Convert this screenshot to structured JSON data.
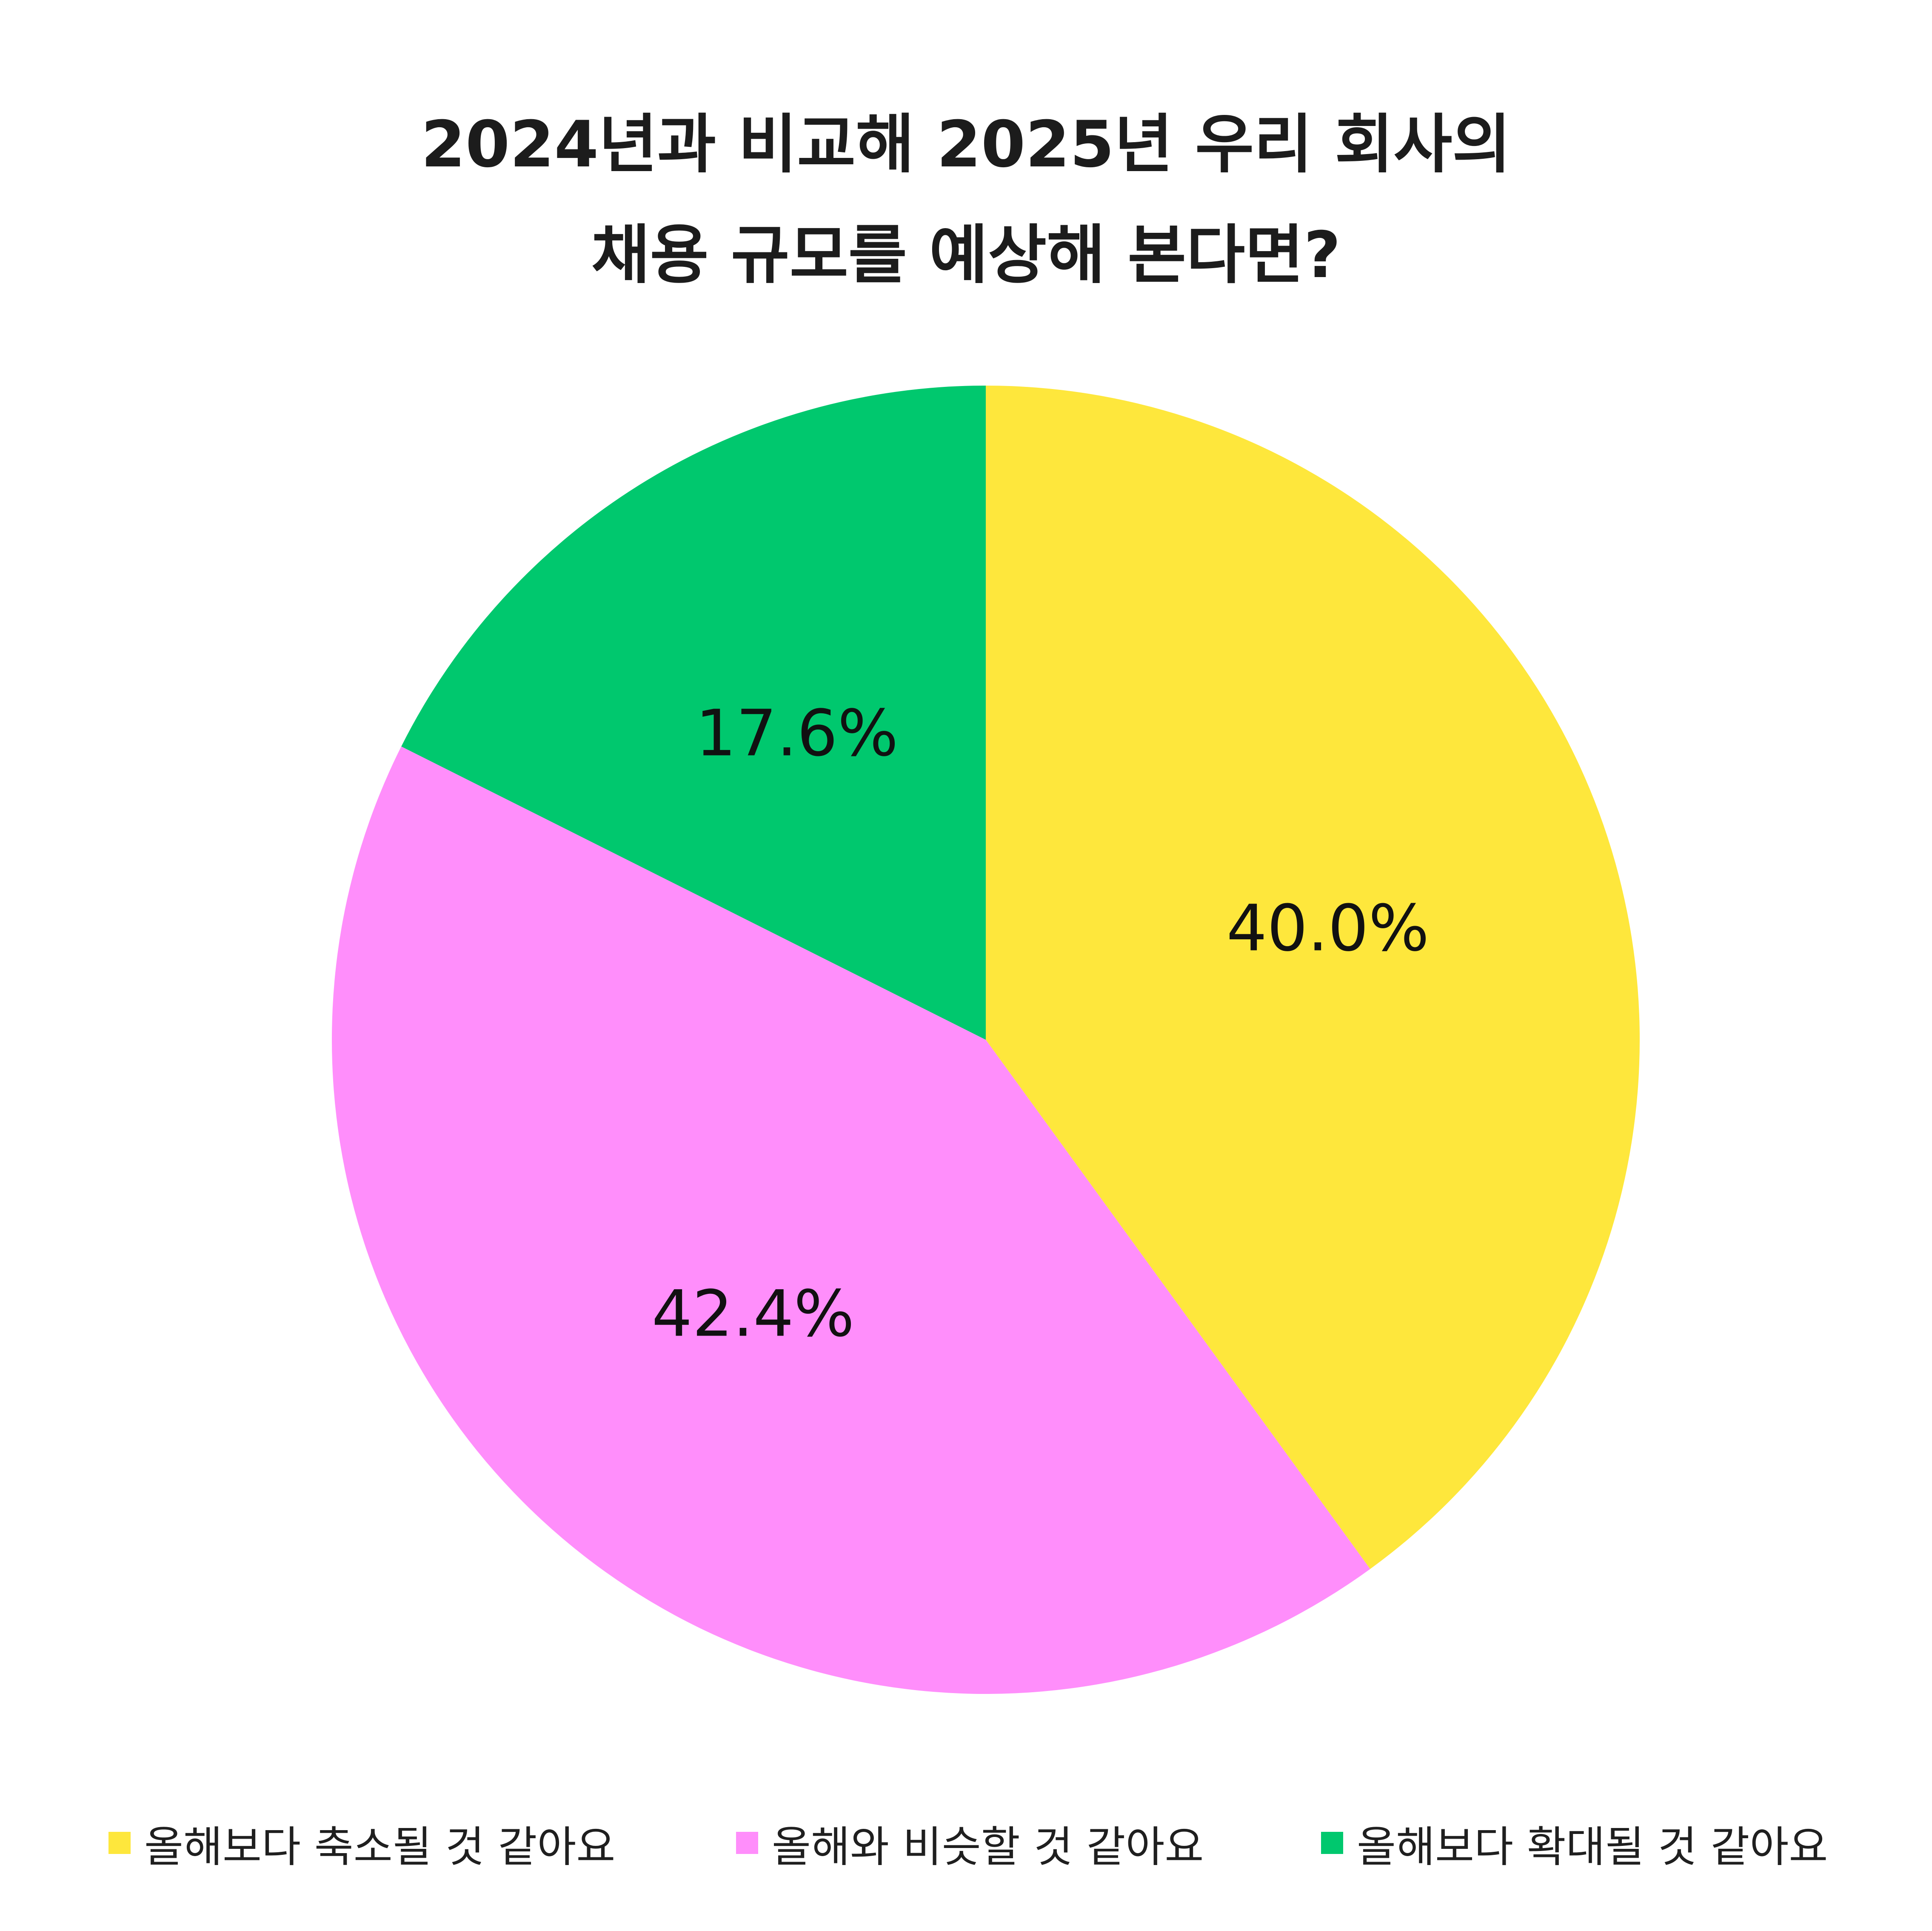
{
  "chart_data": {
    "type": "pie",
    "title": [
      "2024년과 비교해 2025년 우리 회사의",
      "채용 규모를 예상해 본다면?"
    ],
    "slices": [
      {
        "label": "올해보다 축소될 것 같아요",
        "value": 40.0,
        "display": "40.0%",
        "color": "#FEE73C"
      },
      {
        "label": "올해와 비슷할 것 같아요",
        "value": 42.4,
        "display": "42.4%",
        "color": "#FF8EFB"
      },
      {
        "label": "올해보다 확대될 것 같아요",
        "value": 17.6,
        "display": "17.6%",
        "color": "#00C86E"
      }
    ],
    "start_angle": "12 o'clock",
    "direction": "clockwise",
    "legend_position": "bottom"
  }
}
